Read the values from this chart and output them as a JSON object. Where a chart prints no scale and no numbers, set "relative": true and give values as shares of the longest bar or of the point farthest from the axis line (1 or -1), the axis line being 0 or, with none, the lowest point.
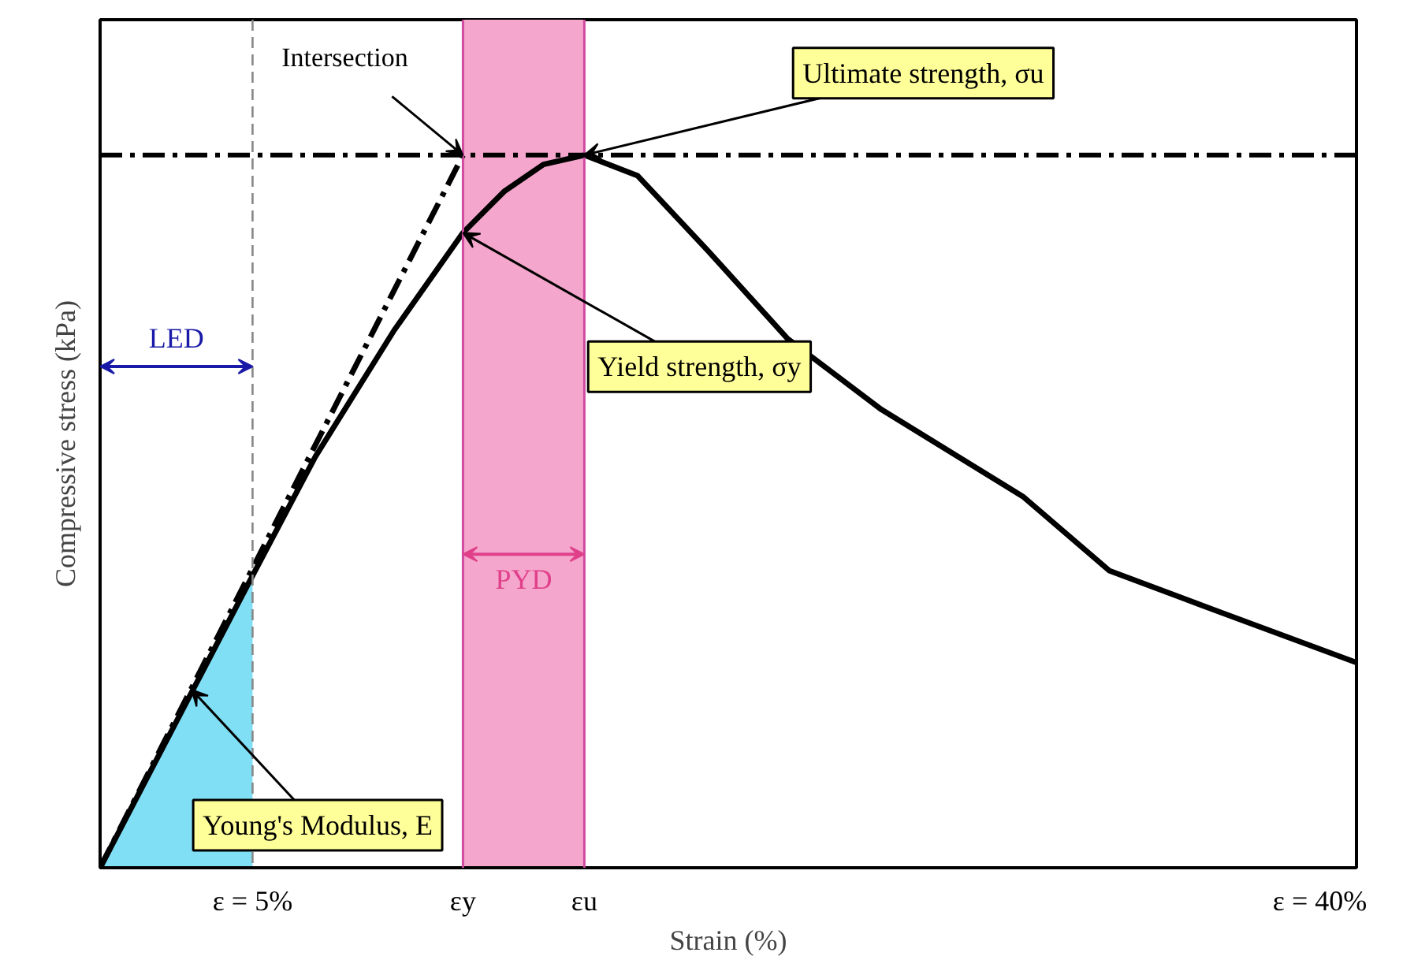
{
  "chart_data": {
    "type": "line",
    "relative": true,
    "xlabel": "Strain (%)",
    "ylabel": "Compressive stress (kPa)",
    "xlim": [
      0,
      41.2
    ],
    "xticks": [
      {
        "value": 5,
        "label": "ε = 5%"
      },
      {
        "value": 11.9,
        "label": "εy"
      },
      {
        "value": 15.88,
        "label": "εu"
      },
      {
        "value": 40,
        "label": "ε = 40%"
      }
    ],
    "series": [
      {
        "type": "area",
        "color": "#80dff5",
        "x": [
          0,
          5
        ],
        "values": [
          0,
          0.41
        ]
      },
      {
        "color": "#000000",
        "x": [
          0,
          5,
          7.06,
          9.64,
          11.9,
          13.25,
          14.54,
          15.88,
          17.63,
          19.95,
          22.53,
          25.62,
          30.26,
          33.09,
          36.96,
          41.19
        ],
        "values": [
          0,
          0.41,
          0.577,
          0.754,
          0.891,
          0.949,
          0.987,
          1,
          0.971,
          0.865,
          0.743,
          0.643,
          0.521,
          0.417,
          0.355,
          0.288
        ]
      },
      {
        "color": "#000000",
        "line_style": "dashed",
        "x": [
          0,
          11.9
        ],
        "values": [
          0,
          1
        ]
      }
    ],
    "ref_lines": [
      {
        "axis": "x",
        "value": 5,
        "color": "#888888",
        "line_style": "dashed"
      },
      {
        "axis": "y",
        "value": 1,
        "color": "#000000",
        "line_style": "dashed"
      }
    ],
    "bands": [
      {
        "axis": "x",
        "from": 11.9,
        "to": 15.88,
        "label": "PYD",
        "color": "#f4a6cc"
      }
    ],
    "annotations": [
      {
        "text": "Intersection",
        "x": 11.9,
        "y": 1
      },
      {
        "text": "Ultimate strength, σu",
        "x": 15.88,
        "y": 1
      },
      {
        "text": "Yield strength, σy",
        "x": 11.9,
        "y": 0.891
      },
      {
        "text": "Young's Modulus, E",
        "x": 3,
        "y": 0.25
      },
      "LED"
    ]
  }
}
